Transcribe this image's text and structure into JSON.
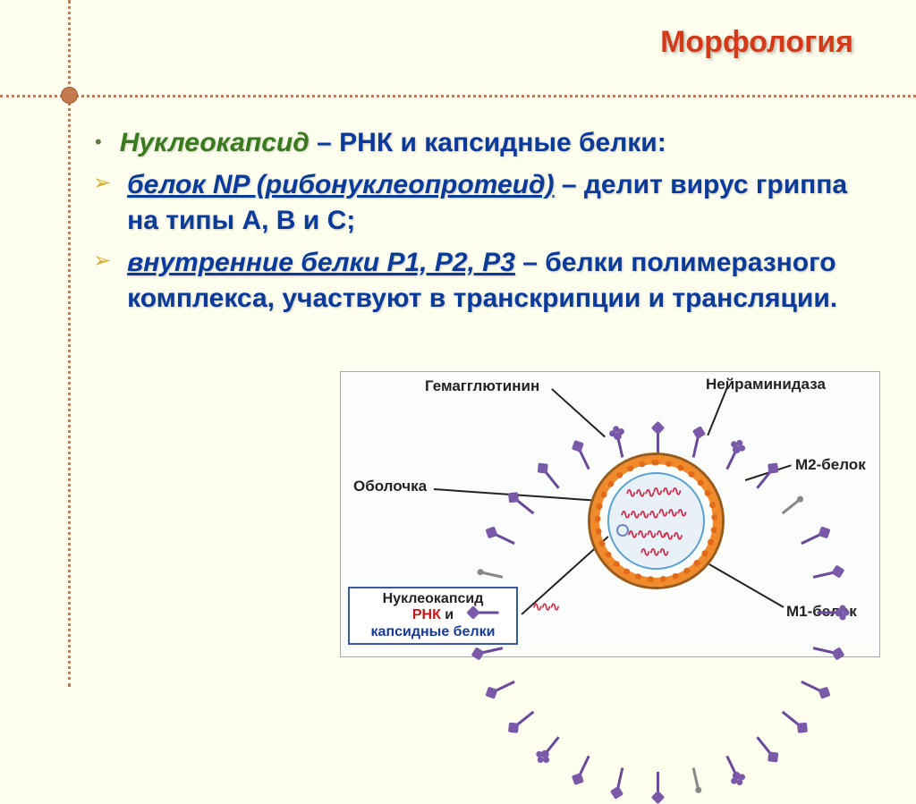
{
  "title": "Морфология",
  "bullets": {
    "b1_lead": "Нуклеокапсид",
    "b1_rest": " – РНК и капсидные белки:",
    "b2_lead": "белок NP (рибонуклеопротеид)",
    "b2_rest": " – делит вирус гриппа  на типы А,  В и С;",
    "b3_lead": "внутренние белки Р1, Р2, Р3",
    "b3_rest": " – белки полимеразного комплекса, участвуют в транскрипции и трансляции."
  },
  "figure": {
    "labels": {
      "hemagglutinin": "Гемагглютинин",
      "neuraminidase": "Нейраминидаза",
      "m2": "М2-белок",
      "envelope": "Оболочка",
      "m1": "М1-белок",
      "nucleocapsid_l1": "Нуклеокапсид",
      "nucleocapsid_l2": "РНК",
      "nucleocapsid_l3": "капсидные белки",
      "and": "и"
    },
    "colors": {
      "spike_stem": "#6a4a9a",
      "spike_head": "#7a5aa8",
      "m2_color": "#888888",
      "envelope_outer": "#9a5a1a",
      "envelope_fill": "#f08a2a",
      "beads": "#e06a1a",
      "inner_border": "#5aa0d0",
      "inner_fill": "#e8f0f8",
      "rna": "#d02a4a",
      "label_box_border": "#3a5aa0",
      "label_text": "#222222",
      "rnk_text": "#c01a1a",
      "capsid_text": "#1a3a9a"
    },
    "spike_count": 28
  },
  "style": {
    "background": "#fdfeed",
    "grid_color": "#c47a4f",
    "title_color": "#d43a1a",
    "title_fontsize": 34,
    "green_italic_color": "#3a7a1f",
    "blue_bold_color": "#0a3a9a",
    "body_fontsize": 30,
    "bullet_disc_color": "#5a7a3a",
    "bullet_arrow_color": "#dcae2c"
  }
}
